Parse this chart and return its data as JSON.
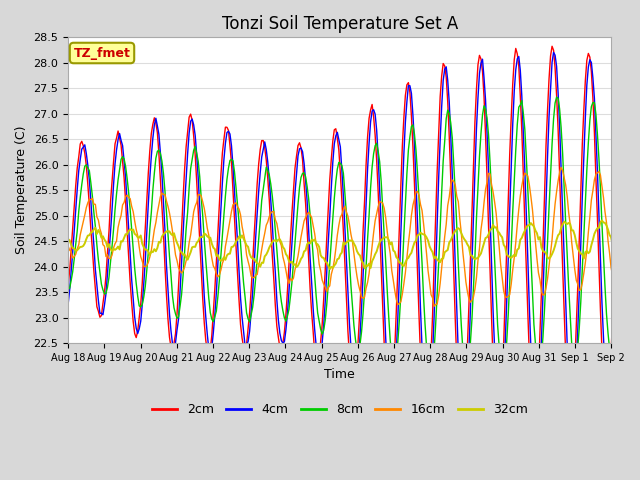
{
  "title": "Tonzi Soil Temperature Set A",
  "xlabel": "Time",
  "ylabel": "Soil Temperature (C)",
  "annotation": "TZ_fmet",
  "ylim": [
    22.5,
    28.5
  ],
  "yticks": [
    22.5,
    23.0,
    23.5,
    24.0,
    24.5,
    25.0,
    25.5,
    26.0,
    26.5,
    27.0,
    27.5,
    28.0,
    28.5
  ],
  "colors": {
    "2cm": "#ff0000",
    "4cm": "#0000ff",
    "8cm": "#00cc00",
    "16cm": "#ff8800",
    "32cm": "#cccc00"
  },
  "legend_labels": [
    "2cm",
    "4cm",
    "8cm",
    "16cm",
    "32cm"
  ],
  "fig_background": "#d8d8d8",
  "plot_background": "#ffffff",
  "title_fontsize": 12,
  "axis_fontsize": 9,
  "tick_fontsize": 8,
  "xtick_labels": [
    "Aug 18",
    "Aug 19",
    "Aug 20",
    "Aug 21",
    "Aug 22",
    "Aug 23",
    "Aug 24",
    "Aug 25",
    "Aug 26",
    "Aug 27",
    "Aug 28",
    "Aug 29",
    "Aug 30",
    "Aug 31",
    "Sep 1",
    "Sep 2"
  ],
  "annotation_color": "#cc0000",
  "annotation_bg": "#ffff99",
  "annotation_border": "#999900"
}
